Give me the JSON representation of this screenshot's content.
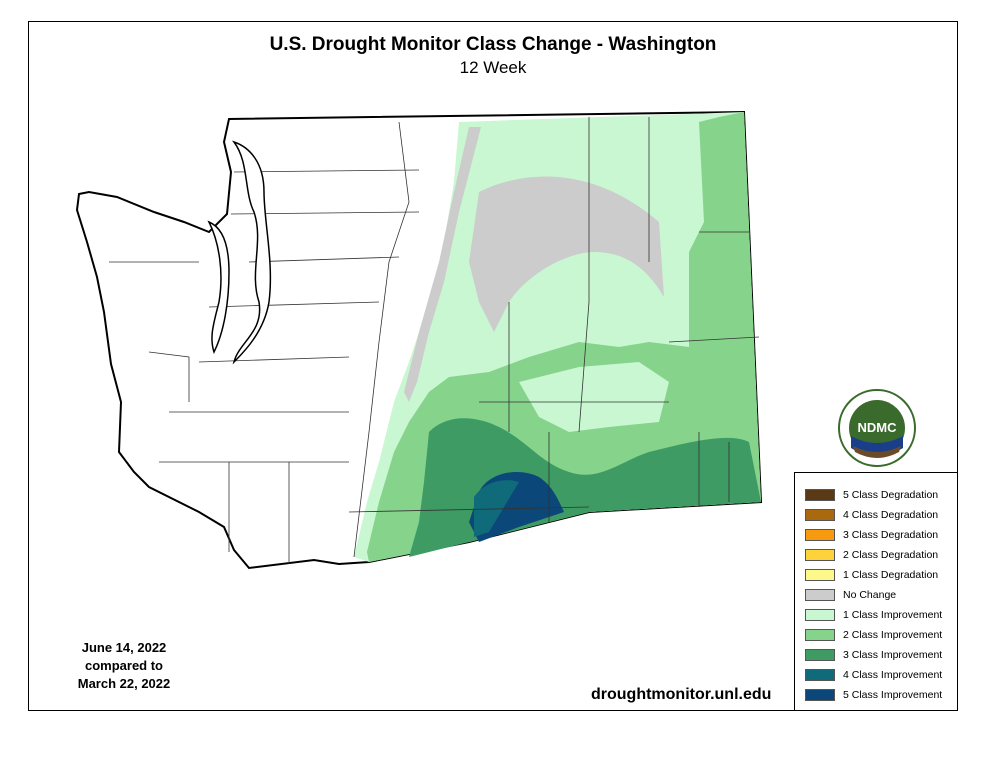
{
  "title": "U.S. Drought Monitor Class Change - Washington",
  "subtitle": "12 Week",
  "dates": {
    "line1": "June 14, 2022",
    "line2": "compared to",
    "line3": "March 22, 2022"
  },
  "source_url": "droughtmonitor.unl.edu",
  "logo": {
    "text": "NDMC",
    "ring_text": "NATIONAL DROUGHT MITIGATION CENTER · UNIVERSITY OF NEBRASKA"
  },
  "legend": {
    "items": [
      {
        "label": "5 Class Degradation",
        "color": "#5a3a14"
      },
      {
        "label": "4 Class Degradation",
        "color": "#a8690f"
      },
      {
        "label": "3 Class Degradation",
        "color": "#f79a10"
      },
      {
        "label": "2 Class Degradation",
        "color": "#fdd23b"
      },
      {
        "label": "1 Class Degradation",
        "color": "#fcf98a"
      },
      {
        "label": "No Change",
        "color": "#cccccc"
      },
      {
        "label": "1 Class Improvement",
        "color": "#c8f7d2"
      },
      {
        "label": "2 Class Improvement",
        "color": "#86d38b"
      },
      {
        "label": "3 Class Improvement",
        "color": "#3e9b64"
      },
      {
        "label": "4 Class Improvement",
        "color": "#0f6b7a"
      },
      {
        "label": "5 Class Improvement",
        "color": "#0b4778"
      }
    ]
  }
}
